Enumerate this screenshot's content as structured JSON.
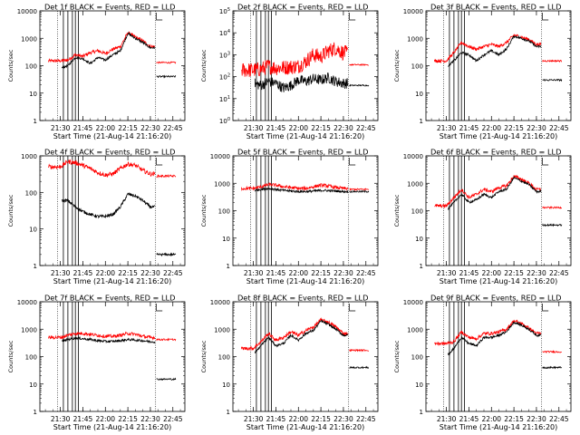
{
  "xtick_labels": [
    "21:30",
    "21:45",
    "22:00",
    "22:15",
    "22:30",
    "22:45"
  ],
  "xlabel": "Start Time (21-Aug-14 21:16:20)",
  "ylabel": "Counts/sec",
  "colors": {
    "events": "#000000",
    "lld": "#ff0000"
  },
  "chart_data": [
    {
      "type": "line",
      "title": "Det 1f  BLACK = Events, RED = LLD",
      "ylog": true,
      "ylim": [
        1,
        10000
      ],
      "ytick_labels": [
        "1",
        "10",
        "100",
        "1000",
        "10000"
      ],
      "x": [
        "21:30",
        "21:35",
        "21:40",
        "21:45",
        "21:50",
        "21:55",
        "22:00",
        "22:05",
        "22:10",
        "22:15",
        "22:20",
        "22:25",
        "22:30"
      ],
      "series": [
        {
          "name": "LLD",
          "values": [
            150,
            160,
            250,
            220,
            300,
            350,
            280,
            400,
            500,
            1600,
            1100,
            800,
            500
          ]
        },
        {
          "name": "Events",
          "values": [
            80,
            100,
            200,
            180,
            120,
            200,
            160,
            250,
            350,
            1500,
            1000,
            700,
            450
          ]
        }
      ],
      "after_series": {
        "LLD": 130,
        "Events": 40
      }
    },
    {
      "type": "line",
      "title": "Det 2f  BLACK = Events, RED = LLD",
      "ylog": true,
      "ylim": [
        1,
        100000
      ],
      "ytick_labels": [
        "10^0",
        "10^1",
        "10^2",
        "10^3",
        "10^4",
        "10^5"
      ],
      "x": [
        "21:30",
        "21:35",
        "21:40",
        "21:45",
        "21:50",
        "21:55",
        "22:00",
        "22:05",
        "22:10",
        "22:15",
        "22:20",
        "22:25",
        "22:30"
      ],
      "series": [
        {
          "name": "LLD",
          "values": [
            200,
            220,
            300,
            250,
            260,
            280,
            300,
            500,
            1000,
            800,
            1500,
            2000,
            1200
          ]
        },
        {
          "name": "Events",
          "values": [
            50,
            40,
            60,
            50,
            30,
            40,
            70,
            60,
            80,
            70,
            90,
            60,
            50
          ]
        }
      ],
      "after_series": {
        "LLD": 350,
        "Events": 40
      }
    },
    {
      "type": "line",
      "title": "Det 3f  BLACK = Events, RED = LLD",
      "ylog": true,
      "ylim": [
        1,
        10000
      ],
      "ytick_labels": [
        "1",
        "10",
        "100",
        "1000",
        "10000"
      ],
      "x": [
        "21:30",
        "21:35",
        "21:40",
        "21:45",
        "21:50",
        "21:55",
        "22:00",
        "22:05",
        "22:10",
        "22:15",
        "22:20",
        "22:25",
        "22:30"
      ],
      "series": [
        {
          "name": "LLD",
          "values": [
            150,
            300,
            700,
            500,
            400,
            500,
            600,
            500,
            700,
            1300,
            1100,
            900,
            600
          ]
        },
        {
          "name": "Events",
          "values": [
            90,
            150,
            300,
            250,
            150,
            250,
            350,
            250,
            400,
            1200,
            1000,
            800,
            500
          ]
        }
      ],
      "after_series": {
        "LLD": 150,
        "Events": 30
      }
    },
    {
      "type": "line",
      "title": "Det 4f  BLACK = Events, RED = LLD",
      "ylog": true,
      "ylim": [
        1,
        1000
      ],
      "ytick_labels": [
        "1",
        "10",
        "100",
        "1000"
      ],
      "x": [
        "21:30",
        "21:35",
        "21:40",
        "21:45",
        "21:50",
        "21:55",
        "22:00",
        "22:05",
        "22:10",
        "22:15",
        "22:20",
        "22:25",
        "22:30"
      ],
      "series": [
        {
          "name": "LLD",
          "values": [
            500,
            700,
            650,
            550,
            450,
            350,
            300,
            320,
            450,
            600,
            550,
            400,
            320
          ]
        },
        {
          "name": "Events",
          "values": [
            60,
            60,
            40,
            30,
            25,
            22,
            22,
            25,
            40,
            90,
            80,
            60,
            40
          ]
        }
      ],
      "after_series": {
        "LLD": 280,
        "Events": 2
      }
    },
    {
      "type": "line",
      "title": "Det 5f  BLACK = Events, RED = LLD",
      "ylog": true,
      "ylim": [
        1,
        10000
      ],
      "ytick_labels": [
        "1",
        "10",
        "100",
        "1000",
        "10000"
      ],
      "x": [
        "21:30",
        "21:35",
        "21:40",
        "21:45",
        "21:50",
        "21:55",
        "22:00",
        "22:05",
        "22:10",
        "22:15",
        "22:20",
        "22:25",
        "22:30"
      ],
      "series": [
        {
          "name": "LLD",
          "values": [
            650,
            750,
            900,
            850,
            750,
            700,
            650,
            650,
            750,
            850,
            800,
            700,
            650
          ]
        },
        {
          "name": "Events",
          "values": [
            550,
            600,
            650,
            600,
            550,
            520,
            500,
            500,
            520,
            550,
            540,
            520,
            500
          ]
        }
      ],
      "after_series": {
        "LLD": 600,
        "Events": 500
      }
    },
    {
      "type": "line",
      "title": "Det 6f  BLACK = Events, RED = LLD",
      "ylog": true,
      "ylim": [
        1,
        10000
      ],
      "ytick_labels": [
        "1",
        "10",
        "100",
        "1000",
        "10000"
      ],
      "x": [
        "21:30",
        "21:35",
        "21:40",
        "21:45",
        "21:50",
        "21:55",
        "22:00",
        "22:05",
        "22:10",
        "22:15",
        "22:20",
        "22:25",
        "22:30"
      ],
      "series": [
        {
          "name": "LLD",
          "values": [
            150,
            300,
            600,
            300,
            400,
            600,
            500,
            700,
            800,
            1800,
            1400,
            1000,
            600
          ]
        },
        {
          "name": "Events",
          "values": [
            100,
            200,
            400,
            200,
            250,
            400,
            300,
            500,
            600,
            1600,
            1200,
            900,
            500
          ]
        }
      ],
      "after_series": {
        "LLD": 130,
        "Events": 30
      }
    },
    {
      "type": "line",
      "title": "Det 7f  BLACK = Events, RED = LLD",
      "ylog": true,
      "ylim": [
        1,
        10000
      ],
      "ytick_labels": [
        "1",
        "10",
        "100",
        "1000",
        "10000"
      ],
      "x": [
        "21:30",
        "21:35",
        "21:40",
        "21:45",
        "21:50",
        "21:55",
        "22:00",
        "22:05",
        "22:10",
        "22:15",
        "22:20",
        "22:25",
        "22:30"
      ],
      "series": [
        {
          "name": "LLD",
          "values": [
            500,
            600,
            700,
            700,
            650,
            600,
            550,
            550,
            600,
            700,
            650,
            550,
            500
          ]
        },
        {
          "name": "Events",
          "values": [
            350,
            420,
            480,
            450,
            420,
            380,
            360,
            360,
            380,
            420,
            400,
            380,
            350
          ]
        }
      ],
      "after_series": {
        "LLD": 420,
        "Events": 15
      }
    },
    {
      "type": "line",
      "title": "Det 8f  BLACK = Events, RED = LLD",
      "ylog": true,
      "ylim": [
        1,
        10000
      ],
      "ytick_labels": [
        "1",
        "10",
        "100",
        "1000",
        "10000"
      ],
      "x": [
        "21:30",
        "21:35",
        "21:40",
        "21:45",
        "21:50",
        "21:55",
        "22:00",
        "22:05",
        "22:10",
        "22:15",
        "22:20",
        "22:25",
        "22:30"
      ],
      "series": [
        {
          "name": "LLD",
          "values": [
            200,
            350,
            700,
            400,
            500,
            800,
            600,
            900,
            1200,
            2200,
            1800,
            1200,
            700
          ]
        },
        {
          "name": "Events",
          "values": [
            120,
            250,
            500,
            250,
            300,
            600,
            400,
            700,
            900,
            2000,
            1500,
            1000,
            600
          ]
        }
      ],
      "after_series": {
        "LLD": 170,
        "Events": 40
      }
    },
    {
      "type": "line",
      "title": "Det 9f  BLACK = Events, RED = LLD",
      "ylog": true,
      "ylim": [
        1,
        10000
      ],
      "ytick_labels": [
        "1",
        "10",
        "100",
        "1000",
        "10000"
      ],
      "x": [
        "21:30",
        "21:35",
        "21:40",
        "21:45",
        "21:50",
        "21:55",
        "22:00",
        "22:05",
        "22:10",
        "22:15",
        "22:20",
        "22:25",
        "22:30"
      ],
      "series": [
        {
          "name": "LLD",
          "values": [
            300,
            350,
            800,
            500,
            450,
            700,
            700,
            800,
            1000,
            2000,
            1600,
            1100,
            700
          ]
        },
        {
          "name": "Events",
          "values": [
            100,
            200,
            500,
            300,
            250,
            500,
            500,
            600,
            800,
            1800,
            1400,
            1000,
            600
          ]
        }
      ],
      "after_series": {
        "LLD": 150,
        "Events": 40
      }
    }
  ]
}
